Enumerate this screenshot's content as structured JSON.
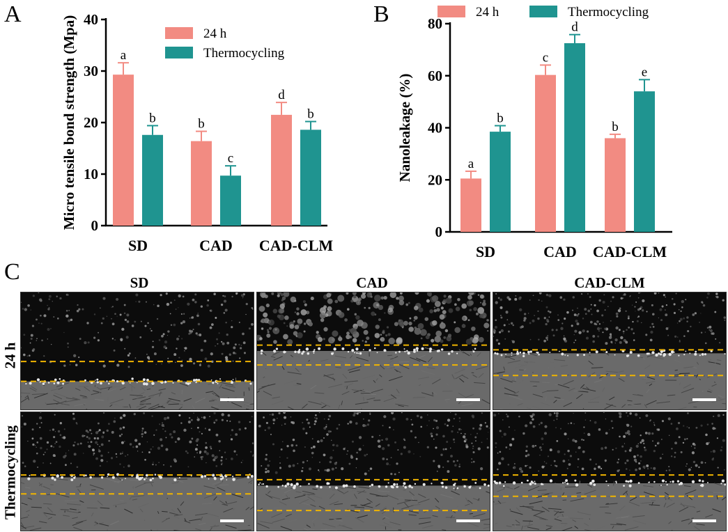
{
  "panels": {
    "a": "A",
    "b": "B",
    "c": "C"
  },
  "colors": {
    "h24": "#f28b82",
    "thermo": "#1f9490",
    "dashed": "#f0b400"
  },
  "chart_data": [
    {
      "type": "bar",
      "panel": "A",
      "categories": [
        "SD",
        "CAD",
        "CAD-CLM"
      ],
      "ylabel": "Micro tensile bond strength (Mpa)",
      "xlabel": "",
      "ylim": [
        0,
        40
      ],
      "yticks": [
        0,
        10,
        20,
        30,
        40
      ],
      "legend_position": "top-right",
      "series": [
        {
          "name": "24 h",
          "values": [
            29.3,
            16.4,
            21.5
          ],
          "errors": [
            2.3,
            1.9,
            2.4
          ],
          "letters": [
            "a",
            "b",
            "d"
          ]
        },
        {
          "name": "Thermocycling",
          "values": [
            17.6,
            9.7,
            18.6
          ],
          "errors": [
            1.8,
            1.9,
            1.6
          ],
          "letters": [
            "b",
            "c",
            "b"
          ]
        }
      ]
    },
    {
      "type": "bar",
      "panel": "B",
      "categories": [
        "SD",
        "CAD",
        "CAD-CLM"
      ],
      "ylabel": "Nanoleakage (%)",
      "xlabel": "",
      "ylim": [
        0,
        80
      ],
      "yticks": [
        0,
        20,
        40,
        60,
        80
      ],
      "legend_position": "top",
      "series": [
        {
          "name": "24 h",
          "values": [
            20.5,
            60.3,
            36.0
          ],
          "errors": [
            2.8,
            3.8,
            1.5
          ],
          "letters": [
            "a",
            "c",
            "b"
          ]
        },
        {
          "name": "Thermocycling",
          "values": [
            38.5,
            72.5,
            54.0
          ],
          "errors": [
            2.3,
            3.3,
            4.5
          ],
          "letters": [
            "b",
            "d",
            "e"
          ]
        }
      ]
    }
  ],
  "micrographs": {
    "columns": [
      "SD",
      "CAD",
      "CAD-CLM"
    ],
    "rows": [
      "24 h",
      "Thermocycling"
    ]
  }
}
